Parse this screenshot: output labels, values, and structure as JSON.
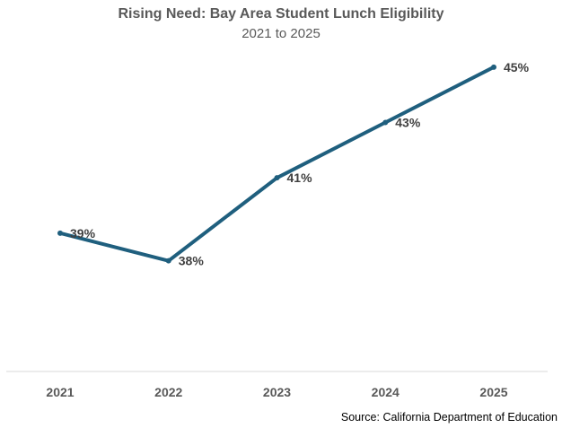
{
  "chart_data": {
    "type": "line",
    "title": "Rising Need: Bay Area Student Lunch Eligibility",
    "subtitle": "2021 to 2025",
    "categories": [
      "2021",
      "2022",
      "2023",
      "2024",
      "2025"
    ],
    "series": [
      {
        "name": "Lunch Eligibility",
        "values": [
          39,
          38,
          41,
          43,
          45
        ],
        "labels": [
          "39%",
          "38%",
          "41%",
          "43%",
          "45%"
        ],
        "color": "#1F5F7E"
      }
    ],
    "xlabel": "",
    "ylabel": "",
    "ylim": [
      34,
      46
    ],
    "grid": false,
    "source": "Source: California Department of Education"
  },
  "colors": {
    "line": "#1F5F7E",
    "axis": "#D9D9D9",
    "title_text": "#595959",
    "label_text": "#404040"
  }
}
